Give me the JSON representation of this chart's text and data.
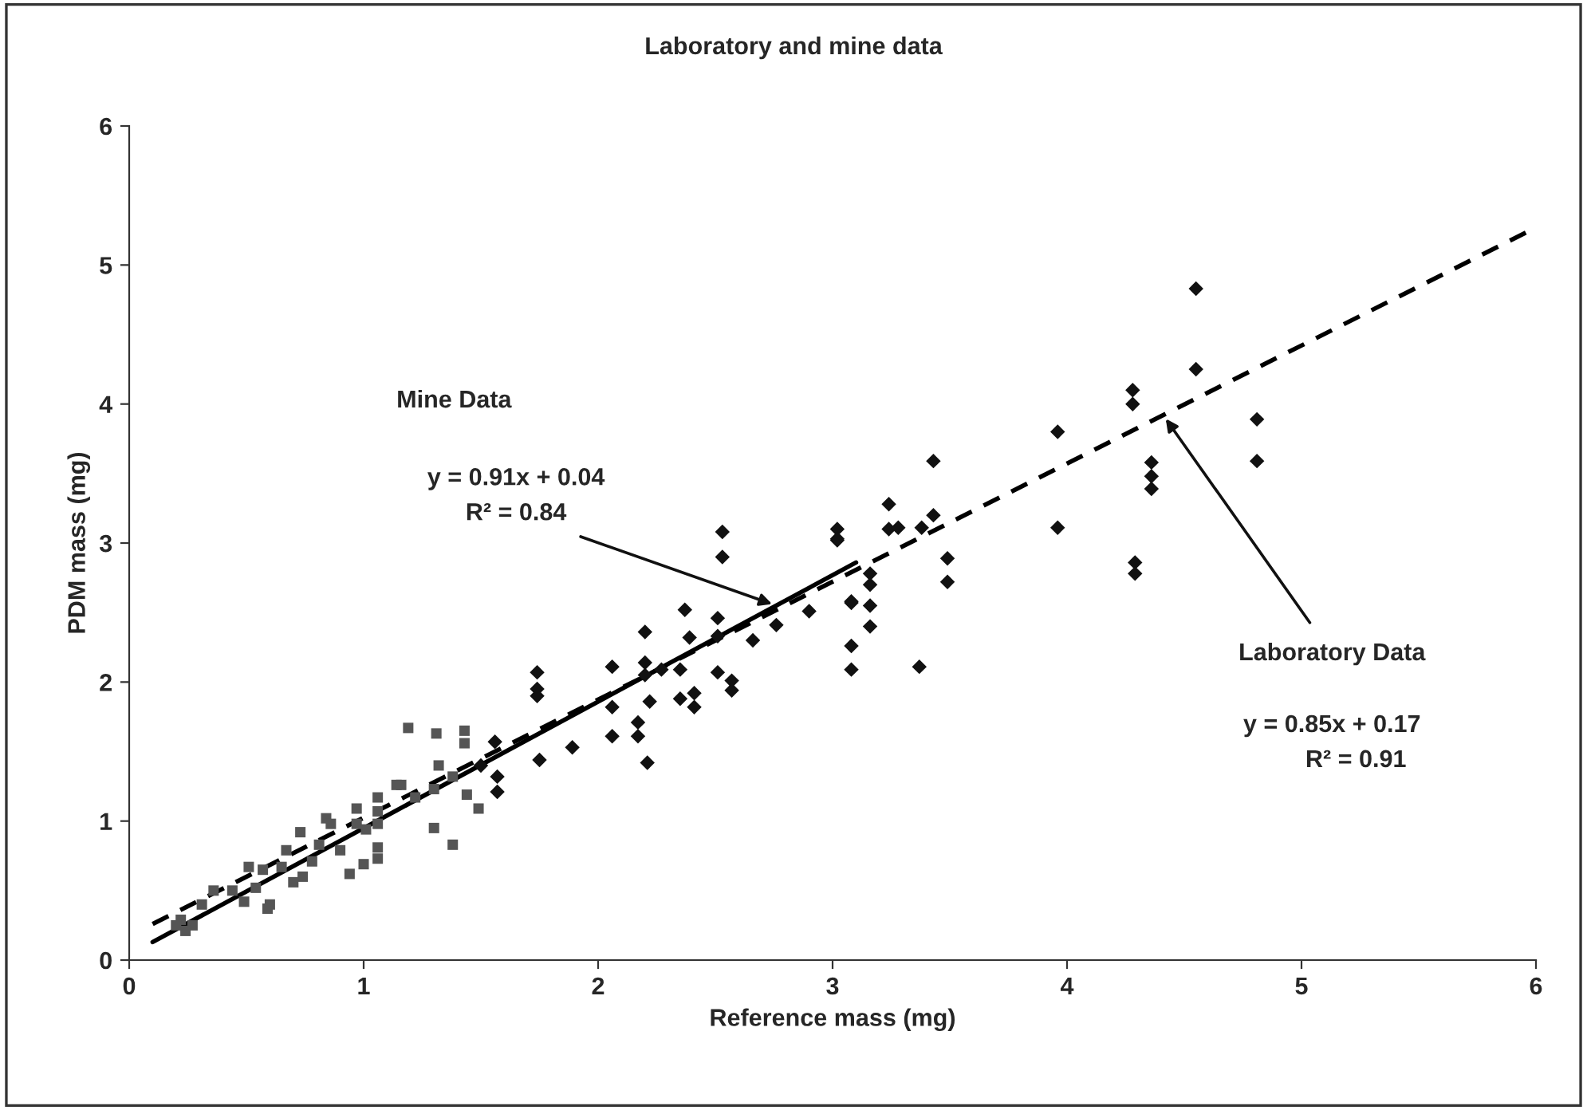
{
  "chart_data": {
    "type": "scatter",
    "title": "Laboratory and mine data",
    "xlabel": "Reference mass (mg)",
    "ylabel": "PDM mass (mg)",
    "xlim": [
      0,
      6
    ],
    "ylim": [
      0,
      6
    ],
    "xticks": [
      0,
      1,
      2,
      3,
      4,
      5,
      6
    ],
    "yticks": [
      0,
      1,
      2,
      3,
      4,
      5,
      6
    ],
    "grid": false,
    "legend": false,
    "series": [
      {
        "type": "scatter",
        "marker": "square",
        "color": "#555555",
        "x": [
          1.19,
          1.31,
          1.43,
          1.43,
          1.32,
          1.38,
          1.44,
          1.49,
          1.3,
          1.22,
          1.14,
          1.16,
          1.06,
          1.06,
          1.06,
          0.97,
          0.84,
          0.86,
          0.97,
          1.01,
          1.06,
          1.06,
          1.0,
          0.94,
          1.3,
          1.38,
          0.73,
          0.67,
          0.81,
          0.78,
          0.9,
          0.51,
          0.57,
          0.65,
          0.7,
          0.74,
          0.36,
          0.44,
          0.54,
          0.49,
          0.6,
          0.59,
          0.31,
          0.22,
          0.27,
          0.2,
          0.24
        ],
        "values": [
          1.67,
          1.63,
          1.65,
          1.56,
          1.4,
          1.32,
          1.19,
          1.09,
          1.23,
          1.17,
          1.26,
          1.26,
          1.17,
          1.07,
          0.98,
          1.09,
          1.02,
          0.98,
          0.98,
          0.94,
          0.81,
          0.73,
          0.69,
          0.62,
          0.95,
          0.83,
          0.92,
          0.79,
          0.83,
          0.71,
          0.79,
          0.67,
          0.65,
          0.67,
          0.56,
          0.6,
          0.5,
          0.5,
          0.52,
          0.42,
          0.4,
          0.37,
          0.4,
          0.29,
          0.25,
          0.25,
          0.21
        ]
      },
      {
        "type": "scatter",
        "marker": "diamond",
        "color": "#111111",
        "x": [
          1.5,
          1.57,
          1.57,
          1.56,
          1.75,
          1.74,
          1.74,
          1.74,
          1.89,
          2.06,
          2.06,
          2.06,
          2.17,
          2.17,
          2.2,
          2.2,
          2.2,
          2.21,
          2.22,
          2.27,
          2.35,
          2.35,
          2.37,
          2.39,
          2.41,
          2.41,
          2.51,
          2.51,
          2.51,
          2.53,
          2.53,
          2.57,
          2.57,
          2.66,
          2.76,
          2.9,
          3.02,
          3.02,
          3.02,
          3.08,
          3.08,
          3.08,
          3.08,
          3.16,
          3.16,
          3.16,
          3.16,
          3.24,
          3.24,
          3.28,
          3.37,
          3.38,
          3.43,
          3.43,
          3.49,
          3.49,
          3.96,
          3.96,
          4.28,
          4.28,
          4.29,
          4.29,
          4.36,
          4.36,
          4.36,
          4.55,
          4.55,
          4.81,
          4.81
        ],
        "values": [
          1.4,
          1.32,
          1.21,
          1.57,
          1.44,
          2.07,
          1.95,
          1.9,
          1.53,
          2.11,
          1.82,
          1.61,
          1.71,
          1.61,
          2.36,
          2.14,
          2.05,
          1.42,
          1.86,
          2.09,
          2.09,
          1.88,
          2.52,
          2.32,
          1.92,
          1.82,
          2.46,
          2.33,
          2.07,
          3.08,
          2.9,
          2.01,
          1.94,
          2.3,
          2.41,
          2.51,
          3.1,
          3.02,
          3.03,
          2.57,
          2.26,
          2.09,
          2.58,
          2.78,
          2.7,
          2.55,
          2.4,
          3.28,
          3.1,
          3.11,
          2.11,
          3.11,
          3.59,
          3.2,
          2.89,
          2.72,
          3.8,
          3.11,
          4.1,
          4.0,
          2.86,
          2.78,
          3.58,
          3.48,
          3.39,
          4.83,
          4.25,
          3.89,
          3.59
        ]
      },
      {
        "type": "line",
        "line_style": "solid",
        "color": "#000000",
        "x": [
          0.1,
          3.1
        ],
        "values": [
          0.13,
          2.86
        ]
      },
      {
        "type": "line",
        "line_style": "dashed",
        "color": "#000000",
        "x": [
          0.1,
          6
        ],
        "values": [
          0.26,
          5.27
        ]
      }
    ],
    "annotations": [
      "Mine Data",
      "y = 0.91x + 0.04",
      {
        "text": "R² = 0.84",
        "x": 2.76,
        "y": 2.55
      },
      {
        "text": "Laboratory Data",
        "x": 4.41,
        "y": 3.92
      },
      "y = 0.85x + 0.17",
      "R² = 0.91"
    ]
  }
}
